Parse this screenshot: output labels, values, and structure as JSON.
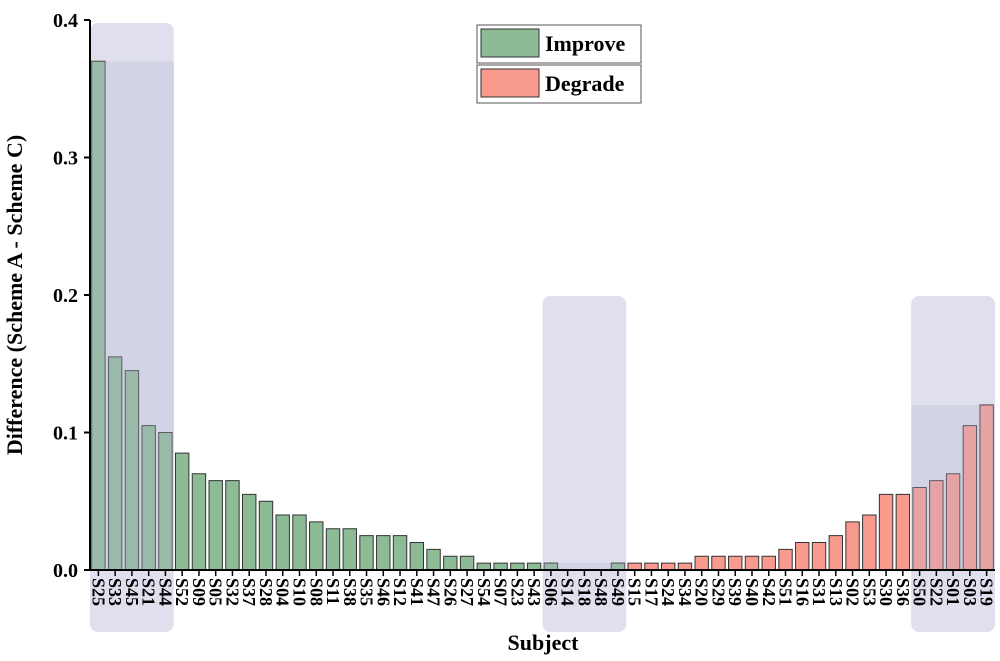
{
  "chart_data": {
    "type": "bar",
    "x_label": "Subject",
    "y_label": "Difference (Scheme A - Scheme C)",
    "categories": [
      "S25",
      "S33",
      "S45",
      "S21",
      "S44",
      "S52",
      "S09",
      "S05",
      "S32",
      "S37",
      "S28",
      "S04",
      "S10",
      "S08",
      "S11",
      "S38",
      "S35",
      "S46",
      "S12",
      "S41",
      "S47",
      "S26",
      "S27",
      "S54",
      "S07",
      "S23",
      "S43",
      "S06",
      "S14",
      "S18",
      "S48",
      "S49",
      "S15",
      "S17",
      "S24",
      "S34",
      "S20",
      "S29",
      "S39",
      "S40",
      "S42",
      "S51",
      "S16",
      "S31",
      "S13",
      "S02",
      "S53",
      "S30",
      "S36",
      "S50",
      "S22",
      "S01",
      "S03",
      "S19"
    ],
    "series": [
      {
        "name": "Improve",
        "color": "#8dbb95",
        "values": [
          0.37,
          0.155,
          0.145,
          0.105,
          0.1,
          0.085,
          0.07,
          0.065,
          0.065,
          0.055,
          0.05,
          0.04,
          0.04,
          0.035,
          0.03,
          0.03,
          0.025,
          0.025,
          0.025,
          0.02,
          0.015,
          0.01,
          0.01,
          0.005,
          0.005,
          0.005,
          0.005,
          0.005,
          0,
          0,
          0,
          0.005,
          null,
          null,
          null,
          null,
          null,
          null,
          null,
          null,
          null,
          null,
          null,
          null,
          null,
          null,
          null,
          null,
          null,
          null,
          null,
          null,
          null,
          null
        ]
      },
      {
        "name": "Degrade",
        "color": "#f99a8e",
        "values": [
          null,
          null,
          null,
          null,
          null,
          null,
          null,
          null,
          null,
          null,
          null,
          null,
          null,
          null,
          null,
          null,
          null,
          null,
          null,
          null,
          null,
          null,
          null,
          null,
          null,
          null,
          null,
          null,
          null,
          null,
          null,
          null,
          0.005,
          0.005,
          0.005,
          0.005,
          0.01,
          0.01,
          0.01,
          0.01,
          0.01,
          0.015,
          0.02,
          0.02,
          0.025,
          0.035,
          0.04,
          0.055,
          0.055,
          0.06,
          0.065,
          0.07,
          0.105,
          0.12
        ]
      }
    ],
    "highlight_ranges": [
      [
        "S25",
        "S44"
      ],
      [
        "S06",
        "S49"
      ],
      [
        "S50",
        "S19"
      ]
    ],
    "highlight_color": "#b8b8d8",
    "ylim": [
      0,
      0.4
    ],
    "yticks": [
      {
        "value": 0,
        "label": "0.0"
      },
      0.1,
      0.2,
      0.3,
      0.4
    ],
    "grid": false
  }
}
